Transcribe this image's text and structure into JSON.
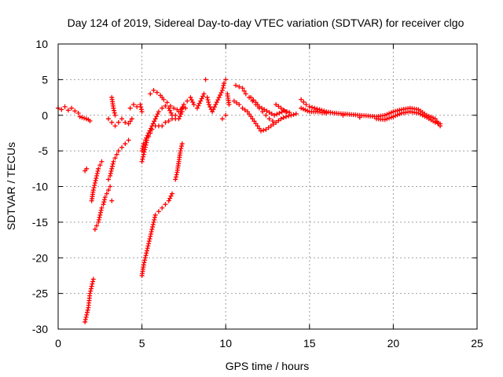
{
  "chart_data": {
    "type": "scatter",
    "title": "Day 124 of 2019, Sidereal Day-to-day VTEC variation (SDTVAR) for receiver clgo",
    "xlabel": "GPS time / hours",
    "ylabel": "SDTVAR / TECUs",
    "xlim": [
      0,
      25
    ],
    "ylim": [
      -30,
      10
    ],
    "xticks": [
      0,
      5,
      10,
      15,
      20,
      25
    ],
    "yticks": [
      -30,
      -25,
      -20,
      -15,
      -10,
      -5,
      0,
      5,
      10
    ],
    "grid": true,
    "marker": "+",
    "color": "#ff0000",
    "series": [
      {
        "name": "sdtvar",
        "points": [
          [
            0.0,
            1.0
          ],
          [
            0.2,
            0.8
          ],
          [
            0.4,
            1.2
          ],
          [
            0.6,
            0.7
          ],
          [
            0.8,
            1.0
          ],
          [
            1.0,
            0.6
          ],
          [
            1.2,
            0.3
          ],
          [
            1.3,
            -0.2
          ],
          [
            1.8,
            -0.6
          ],
          [
            1.9,
            -0.8
          ],
          [
            1.6,
            -29.0
          ],
          [
            1.7,
            -28.0
          ],
          [
            1.8,
            -27.0
          ],
          [
            1.85,
            -26.0
          ],
          [
            1.9,
            -25.0
          ],
          [
            2.0,
            -24.0
          ],
          [
            2.1,
            -23.0
          ],
          [
            1.6,
            -7.8
          ],
          [
            1.7,
            -7.5
          ],
          [
            2.0,
            -12.0
          ],
          [
            2.1,
            -10.5
          ],
          [
            2.2,
            -9.5
          ],
          [
            2.3,
            -8.5
          ],
          [
            2.4,
            -7.5
          ],
          [
            2.5,
            -7.0
          ],
          [
            2.6,
            -6.5
          ],
          [
            2.2,
            -16.0
          ],
          [
            2.3,
            -15.5
          ],
          [
            2.4,
            -15.0
          ],
          [
            2.5,
            -14.0
          ],
          [
            2.6,
            -13.0
          ],
          [
            2.7,
            -12.5
          ],
          [
            2.8,
            -11.5
          ],
          [
            2.9,
            -11.0
          ],
          [
            3.0,
            -10.5
          ],
          [
            3.1,
            -10.0
          ],
          [
            3.2,
            -12.0
          ],
          [
            3.0,
            -9.0
          ],
          [
            3.1,
            -8.5
          ],
          [
            3.2,
            -7.5
          ],
          [
            3.3,
            -6.5
          ],
          [
            3.4,
            -6.0
          ],
          [
            3.5,
            -5.5
          ],
          [
            3.6,
            -5.0
          ],
          [
            3.8,
            -4.5
          ],
          [
            4.0,
            -4.0
          ],
          [
            4.2,
            -3.5
          ],
          [
            3.0,
            -0.5
          ],
          [
            3.2,
            -1.0
          ],
          [
            3.4,
            -1.5
          ],
          [
            3.6,
            -1.0
          ],
          [
            3.8,
            -0.5
          ],
          [
            4.0,
            -1.0
          ],
          [
            4.2,
            -1.2
          ],
          [
            4.4,
            -0.5
          ],
          [
            3.2,
            2.5
          ],
          [
            3.3,
            1.0
          ],
          [
            3.4,
            0.0
          ],
          [
            4.3,
            1.0
          ],
          [
            4.5,
            1.5
          ],
          [
            4.7,
            1.2
          ],
          [
            4.9,
            1.5
          ],
          [
            5.0,
            0.5
          ],
          [
            5.0,
            -22.5
          ],
          [
            5.1,
            -21.0
          ],
          [
            5.2,
            -20.0
          ],
          [
            5.3,
            -19.0
          ],
          [
            5.4,
            -18.0
          ],
          [
            5.5,
            -17.0
          ],
          [
            5.6,
            -16.0
          ],
          [
            5.7,
            -15.0
          ],
          [
            5.8,
            -14.0
          ],
          [
            6.0,
            -13.5
          ],
          [
            6.2,
            -13.0
          ],
          [
            6.4,
            -12.5
          ],
          [
            6.6,
            -12.0
          ],
          [
            6.8,
            -11.0
          ],
          [
            7.0,
            -9.0
          ],
          [
            7.1,
            -8.0
          ],
          [
            7.2,
            -6.5
          ],
          [
            7.3,
            -5.0
          ],
          [
            7.4,
            -4.0
          ],
          [
            5.0,
            -6.5
          ],
          [
            5.1,
            -5.5
          ],
          [
            5.2,
            -4.5
          ],
          [
            5.3,
            -3.5
          ],
          [
            5.4,
            -3.0
          ],
          [
            5.5,
            -2.5
          ],
          [
            5.6,
            -2.0
          ],
          [
            5.8,
            -1.5
          ],
          [
            6.0,
            -1.5
          ],
          [
            6.2,
            -1.5
          ],
          [
            6.4,
            -1.0
          ],
          [
            6.6,
            -0.8
          ],
          [
            6.8,
            -0.5
          ],
          [
            7.0,
            0.0
          ],
          [
            7.2,
            0.5
          ],
          [
            7.4,
            1.0
          ],
          [
            7.6,
            1.0
          ],
          [
            5.0,
            -5.0
          ],
          [
            5.1,
            -4.0
          ],
          [
            5.2,
            -3.5
          ],
          [
            5.4,
            -2.5
          ],
          [
            5.6,
            -1.5
          ],
          [
            5.8,
            -0.5
          ],
          [
            6.0,
            0.5
          ],
          [
            6.2,
            1.0
          ],
          [
            6.4,
            1.3
          ],
          [
            6.6,
            1.0
          ],
          [
            6.8,
            0.0
          ],
          [
            7.0,
            -0.5
          ],
          [
            7.2,
            -0.5
          ],
          [
            7.4,
            0.5
          ],
          [
            5.5,
            3.0
          ],
          [
            5.7,
            3.5
          ],
          [
            5.9,
            3.2
          ],
          [
            6.1,
            2.8
          ],
          [
            6.3,
            2.2
          ],
          [
            6.5,
            1.8
          ],
          [
            6.7,
            1.3
          ],
          [
            6.9,
            1.0
          ],
          [
            7.1,
            0.8
          ],
          [
            7.3,
            0.5
          ],
          [
            7.5,
            1.5
          ],
          [
            7.7,
            2.0
          ],
          [
            7.9,
            2.5
          ],
          [
            8.1,
            1.5
          ],
          [
            8.3,
            1.0
          ],
          [
            8.5,
            2.0
          ],
          [
            8.7,
            3.0
          ],
          [
            8.8,
            5.0
          ],
          [
            8.9,
            2.5
          ],
          [
            9.0,
            1.5
          ],
          [
            9.2,
            0.5
          ],
          [
            9.4,
            1.5
          ],
          [
            9.6,
            2.5
          ],
          [
            9.8,
            3.5
          ],
          [
            9.9,
            4.5
          ],
          [
            10.0,
            5.0
          ],
          [
            10.1,
            3.0
          ],
          [
            10.2,
            1.5
          ],
          [
            10.0,
            0.0
          ],
          [
            9.8,
            -0.5
          ],
          [
            10.6,
            4.2
          ],
          [
            10.8,
            4.0
          ],
          [
            11.0,
            3.8
          ],
          [
            11.2,
            3.0
          ],
          [
            11.4,
            2.5
          ],
          [
            11.6,
            2.0
          ],
          [
            11.8,
            1.5
          ],
          [
            12.0,
            1.0
          ],
          [
            12.2,
            0.5
          ],
          [
            12.4,
            0.0
          ],
          [
            12.6,
            -0.5
          ],
          [
            12.8,
            -0.8
          ],
          [
            10.5,
            2.0
          ],
          [
            10.8,
            1.5
          ],
          [
            11.0,
            1.0
          ],
          [
            11.3,
            0.5
          ],
          [
            11.6,
            -0.5
          ],
          [
            11.9,
            -1.5
          ],
          [
            12.1,
            -2.2
          ],
          [
            12.4,
            -2.0
          ],
          [
            12.7,
            -1.5
          ],
          [
            13.0,
            -1.0
          ],
          [
            13.3,
            -0.5
          ],
          [
            13.6,
            -0.2
          ],
          [
            13.9,
            0.0
          ],
          [
            14.2,
            0.2
          ],
          [
            11.5,
            2.5
          ],
          [
            11.8,
            1.8
          ],
          [
            12.0,
            1.2
          ],
          [
            12.3,
            0.8
          ],
          [
            12.6,
            0.4
          ],
          [
            12.9,
            0.0
          ],
          [
            13.2,
            0.3
          ],
          [
            13.5,
            0.6
          ],
          [
            13.8,
            0.4
          ],
          [
            13.0,
            1.5
          ],
          [
            13.3,
            1.0
          ],
          [
            13.6,
            0.5
          ],
          [
            14.5,
            2.2
          ],
          [
            14.8,
            1.5
          ],
          [
            15.0,
            1.2
          ],
          [
            15.3,
            1.0
          ],
          [
            15.6,
            0.8
          ],
          [
            16.0,
            0.5
          ],
          [
            16.5,
            0.3
          ],
          [
            17.0,
            0.2
          ],
          [
            17.5,
            0.1
          ],
          [
            18.0,
            0.0
          ],
          [
            18.5,
            -0.1
          ],
          [
            19.0,
            -0.2
          ],
          [
            19.5,
            0.0
          ],
          [
            20.0,
            0.5
          ],
          [
            20.5,
            0.8
          ],
          [
            21.0,
            1.0
          ],
          [
            21.5,
            0.8
          ],
          [
            22.0,
            0.0
          ],
          [
            22.5,
            -0.5
          ],
          [
            22.8,
            -1.5
          ],
          [
            14.5,
            1.0
          ],
          [
            15.0,
            0.5
          ],
          [
            15.5,
            0.5
          ],
          [
            16.0,
            0.3
          ],
          [
            17.0,
            0.0
          ],
          [
            18.0,
            -0.3
          ],
          [
            19.0,
            -0.5
          ],
          [
            19.5,
            -0.6
          ],
          [
            20.0,
            -0.2
          ],
          [
            20.5,
            0.3
          ],
          [
            21.0,
            0.5
          ],
          [
            21.5,
            0.3
          ],
          [
            22.0,
            -0.3
          ],
          [
            22.5,
            -1.0
          ],
          [
            22.8,
            -1.2
          ]
        ]
      }
    ]
  }
}
